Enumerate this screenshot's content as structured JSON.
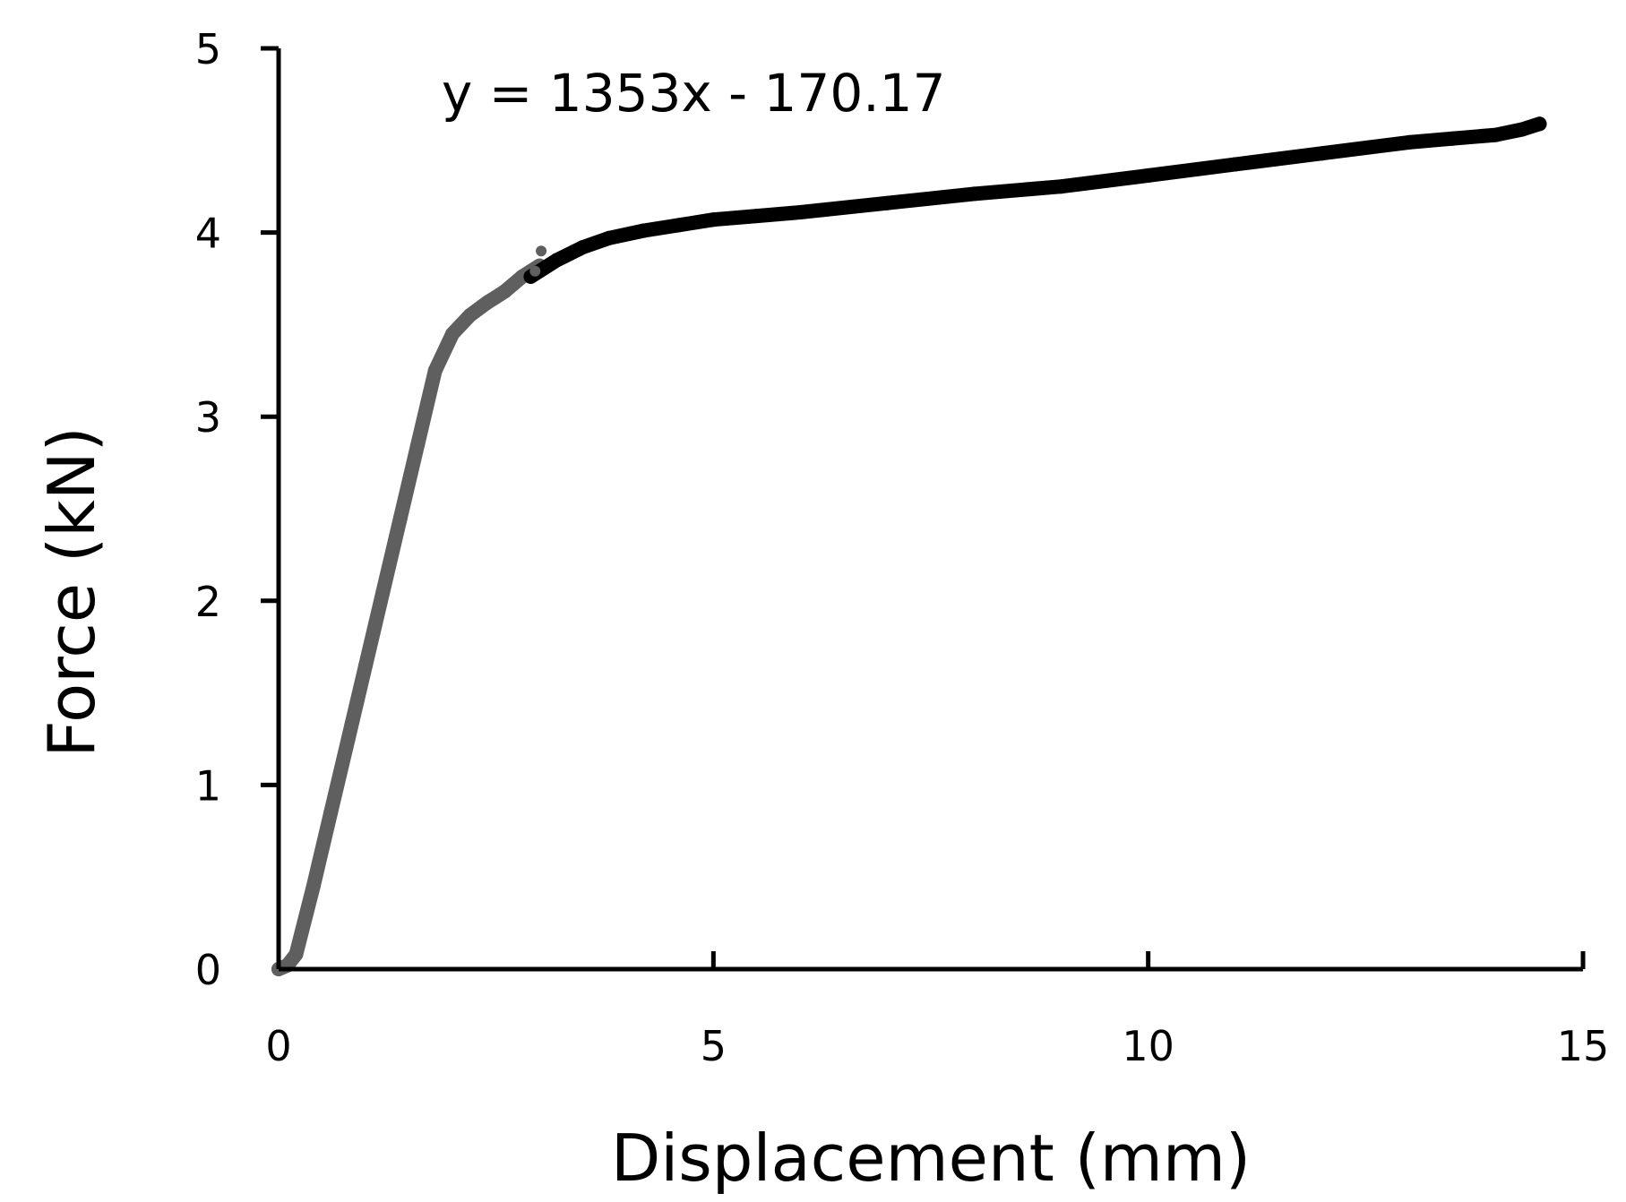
{
  "chart_data": {
    "type": "scatter",
    "title": "",
    "xlabel": "Displacement (mm)",
    "ylabel": "Force (kN)",
    "xlim": [
      0,
      15
    ],
    "ylim": [
      0,
      5
    ],
    "x_ticks": [
      0,
      5,
      10,
      15
    ],
    "y_ticks": [
      0,
      1,
      2,
      3,
      4,
      5
    ],
    "x_tick_labels": [
      "0",
      "5",
      "10",
      "15"
    ],
    "y_tick_labels": [
      "0",
      "1",
      "2",
      "3",
      "4",
      "5"
    ],
    "grid": false,
    "legend": "none",
    "annotations": [
      {
        "text": "y = 1353x - 170.17"
      }
    ],
    "series": [
      {
        "color": "#5f5f5f",
        "x": [
          0.0,
          0.1,
          0.2,
          0.4,
          0.6,
          0.8,
          1.0,
          1.2,
          1.4,
          1.6,
          1.8,
          2.0,
          2.2,
          2.4,
          2.5,
          2.6,
          2.7,
          2.8,
          2.9,
          3.0
        ],
        "y": [
          0.0,
          0.02,
          0.08,
          0.45,
          0.85,
          1.25,
          1.65,
          2.05,
          2.45,
          2.85,
          3.25,
          3.45,
          3.55,
          3.62,
          3.65,
          3.68,
          3.72,
          3.76,
          3.79,
          3.82
        ]
      },
      {
        "color": "#000000",
        "x": [
          2.9,
          3.2,
          3.5,
          3.8,
          4.2,
          4.6,
          5.0,
          5.5,
          6.0,
          7.0,
          8.0,
          9.0,
          10.0,
          11.0,
          12.0,
          13.0,
          13.5,
          14.0,
          14.3,
          14.5
        ],
        "y": [
          3.76,
          3.85,
          3.92,
          3.97,
          4.01,
          4.04,
          4.07,
          4.09,
          4.11,
          4.16,
          4.21,
          4.25,
          4.31,
          4.37,
          4.43,
          4.49,
          4.51,
          4.53,
          4.56,
          4.59
        ]
      },
      {
        "color": "#5f5f5f",
        "x": [
          2.95,
          3.02
        ],
        "y": [
          3.79,
          3.9
        ]
      }
    ]
  }
}
